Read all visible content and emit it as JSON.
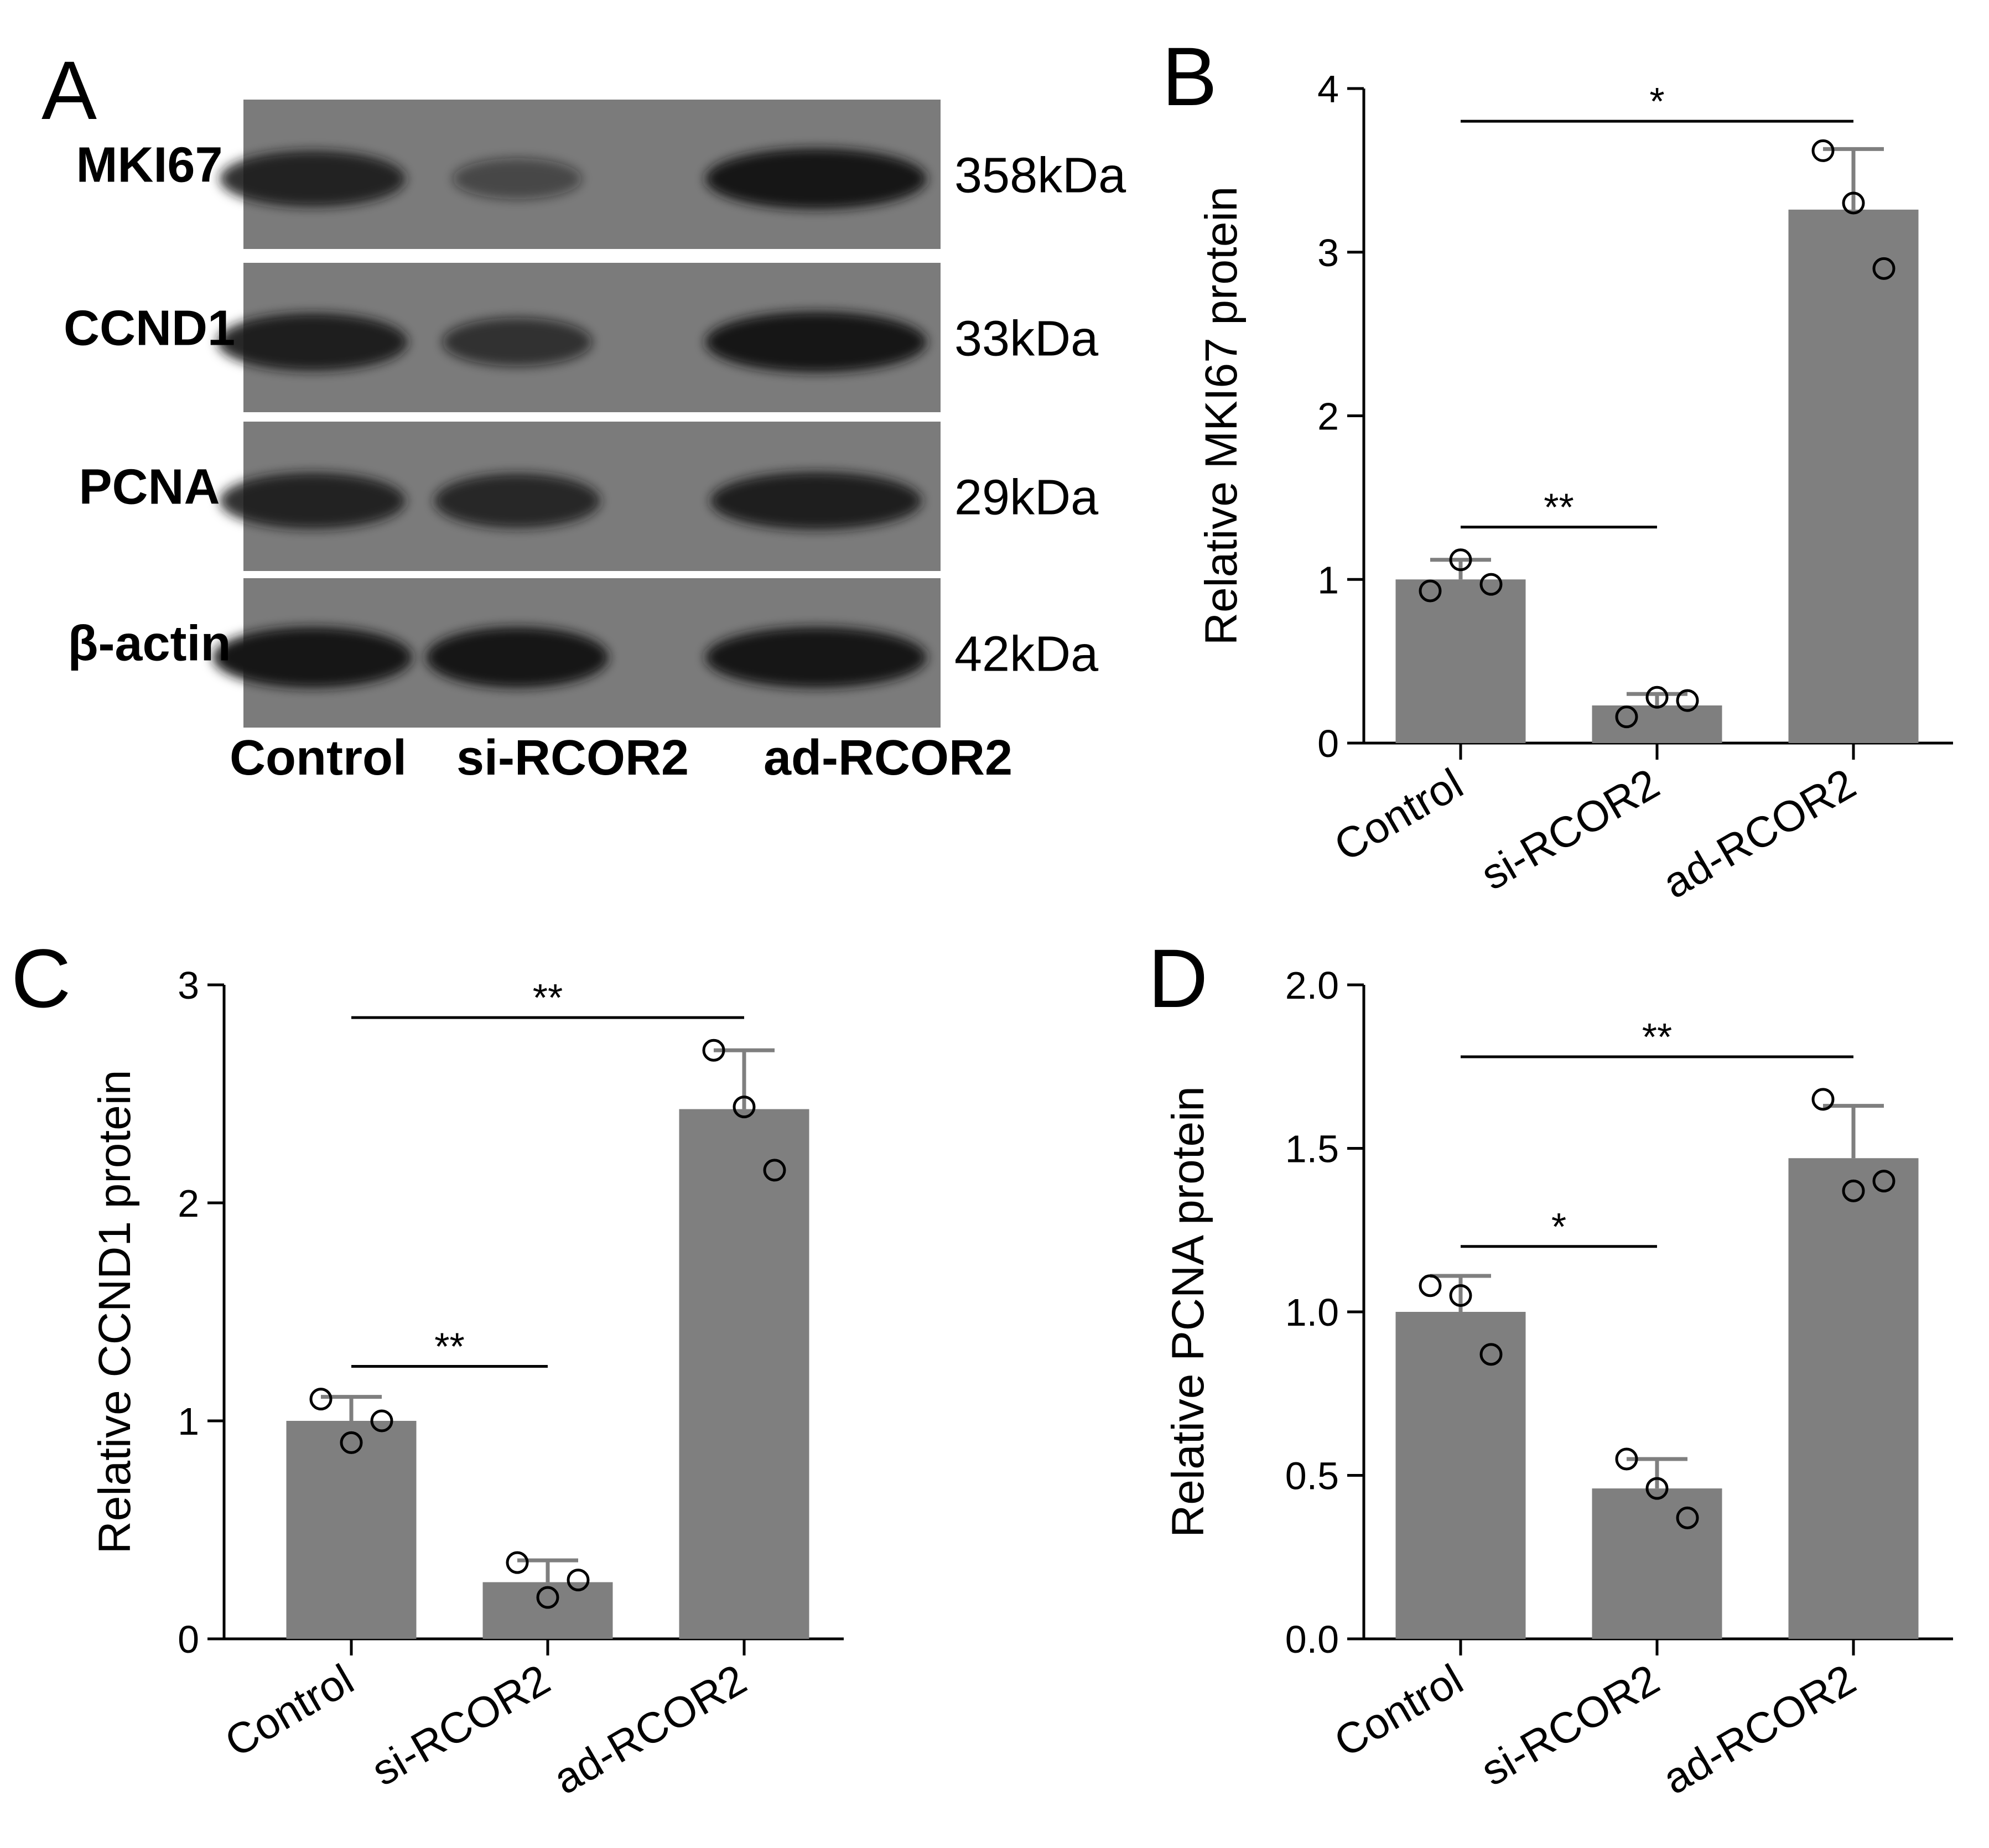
{
  "colors": {
    "bar": "#7f7f7f",
    "axis": "#000000",
    "membrane": "#7b7b7b",
    "band": "#141414",
    "errorbar": "#7f7f7f"
  },
  "blot": {
    "panel_label": "A",
    "lanes": [
      "Control",
      "si-RCOR2",
      "ad-RCOR2"
    ],
    "rows": [
      {
        "protein": "MKI67",
        "size": "358kDa",
        "intensity": [
          0.85,
          0.35,
          1.0
        ]
      },
      {
        "protein": "CCND1",
        "size": "33kDa",
        "intensity": [
          0.9,
          0.6,
          1.0
        ]
      },
      {
        "protein": "PCNA",
        "size": "29kDa",
        "intensity": [
          0.85,
          0.8,
          0.9
        ]
      },
      {
        "protein": "β-actin",
        "size": "42kDa",
        "intensity": [
          1.0,
          1.0,
          1.0
        ]
      }
    ]
  },
  "chart_data": [
    {
      "panel_label": "B",
      "type": "bar",
      "categories": [
        "Control",
        "si-RCOR2",
        "ad-RCOR2"
      ],
      "values": [
        1.0,
        0.23,
        3.26
      ],
      "errors": [
        0.12,
        0.07,
        0.37
      ],
      "points": [
        [
          0.93,
          1.12,
          0.97
        ],
        [
          0.16,
          0.28,
          0.26
        ],
        [
          3.62,
          3.3,
          2.9
        ]
      ],
      "ylabel": "Relative MKI67 protein",
      "ylim": [
        0,
        4
      ],
      "yticks": [
        "0",
        "1",
        "2",
        "3",
        "4"
      ],
      "ytick_values": [
        0,
        1,
        2,
        3,
        4
      ],
      "significance": [
        {
          "from": 0,
          "to": 1,
          "y": 1.32,
          "label": "**"
        },
        {
          "from": 0,
          "to": 2,
          "y": 3.8,
          "label": "*"
        }
      ]
    },
    {
      "panel_label": "C",
      "type": "bar",
      "categories": [
        "Control",
        "si-RCOR2",
        "ad-RCOR2"
      ],
      "values": [
        1.0,
        0.26,
        2.43
      ],
      "errors": [
        0.11,
        0.1,
        0.27
      ],
      "points": [
        [
          1.1,
          0.9,
          1.0
        ],
        [
          0.35,
          0.19,
          0.27
        ],
        [
          2.7,
          2.44,
          2.15
        ]
      ],
      "ylabel": "Relative CCND1 protein",
      "ylim": [
        0,
        3
      ],
      "yticks": [
        "0",
        "1",
        "2",
        "3"
      ],
      "ytick_values": [
        0,
        1,
        2,
        3
      ],
      "significance": [
        {
          "from": 0,
          "to": 1,
          "y": 1.25,
          "label": "**"
        },
        {
          "from": 0,
          "to": 2,
          "y": 2.85,
          "label": "**"
        }
      ]
    },
    {
      "panel_label": "D",
      "type": "bar",
      "categories": [
        "Control",
        "si-RCOR2",
        "ad-RCOR2"
      ],
      "values": [
        1.0,
        0.46,
        1.47
      ],
      "errors": [
        0.11,
        0.09,
        0.16
      ],
      "points": [
        [
          1.08,
          1.05,
          0.87
        ],
        [
          0.55,
          0.46,
          0.37
        ],
        [
          1.65,
          1.37,
          1.4
        ]
      ],
      "ylabel": "Relative PCNA protein",
      "ylim": [
        0,
        2.0
      ],
      "yticks": [
        "0.0",
        "0.5",
        "1.0",
        "1.5",
        "2.0"
      ],
      "ytick_values": [
        0,
        0.5,
        1.0,
        1.5,
        2.0
      ],
      "significance": [
        {
          "from": 0,
          "to": 1,
          "y": 1.2,
          "label": "*"
        },
        {
          "from": 0,
          "to": 2,
          "y": 1.78,
          "label": "**"
        }
      ]
    }
  ]
}
